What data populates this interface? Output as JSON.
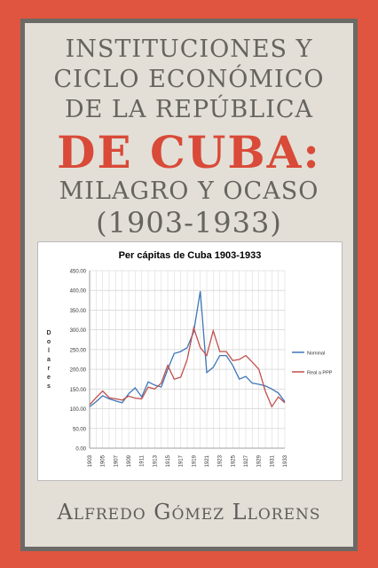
{
  "cover": {
    "title_lines": [
      "INSTITUCIONES Y",
      "CICLO ECONÓMICO",
      "DE LA REPÚBLICA",
      "DE CUBA:",
      "MILAGRO Y OCASO",
      "(1903-1933)"
    ],
    "author": "Alfredo Gómez Llorens",
    "colors": {
      "background": "#e0553f",
      "panel": "#e3dfd6",
      "title": "#66645f",
      "accent": "#d94a38"
    }
  },
  "chart_data": {
    "type": "line",
    "title": "Per cápitas de Cuba 1903-1933",
    "ylabel": "Dolares",
    "xlabel": "",
    "ylim": [
      0,
      450
    ],
    "yticks": [
      "0.00",
      "50.00",
      "100.00",
      "150.00",
      "200.00",
      "250.00",
      "300.00",
      "350.00",
      "400.00",
      "450.00"
    ],
    "xticks": [
      "1903",
      "1905",
      "1907",
      "1909",
      "1911",
      "1913",
      "1915",
      "1917",
      "1919",
      "1921",
      "1923",
      "1925",
      "1927",
      "1929",
      "1931",
      "1933"
    ],
    "grid": true,
    "legend_position": "right",
    "x": [
      1903,
      1904,
      1905,
      1906,
      1907,
      1908,
      1909,
      1910,
      1911,
      1912,
      1913,
      1914,
      1915,
      1916,
      1917,
      1918,
      1919,
      1920,
      1921,
      1922,
      1923,
      1924,
      1925,
      1926,
      1927,
      1928,
      1929,
      1930,
      1931,
      1932,
      1933
    ],
    "series": [
      {
        "name": "Nominal",
        "color": "#3f76b8",
        "values": [
          105,
          118,
          133,
          125,
          120,
          115,
          138,
          153,
          130,
          168,
          160,
          155,
          200,
          240,
          245,
          255,
          295,
          398,
          192,
          205,
          235,
          235,
          210,
          175,
          182,
          165,
          162,
          158,
          150,
          140,
          118
        ]
      },
      {
        "name": "Real a PPP",
        "color": "#c0504d",
        "values": [
          110,
          128,
          145,
          128,
          125,
          122,
          132,
          127,
          125,
          155,
          150,
          165,
          210,
          175,
          180,
          225,
          305,
          255,
          235,
          298,
          245,
          245,
          222,
          225,
          235,
          218,
          200,
          145,
          105,
          130,
          115
        ]
      }
    ]
  }
}
